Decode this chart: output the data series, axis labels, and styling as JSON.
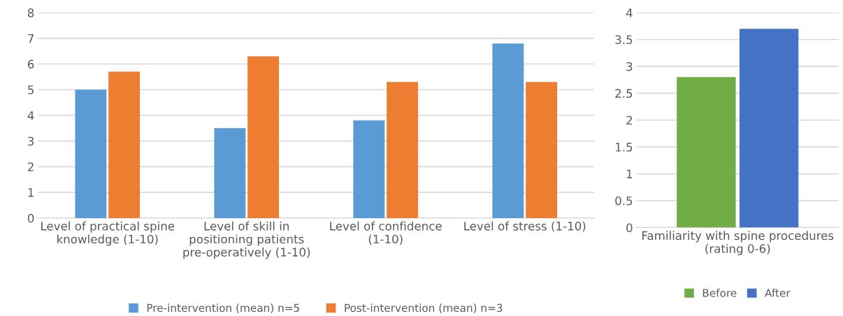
{
  "chart_data": [
    {
      "type": "bar",
      "categories": [
        "Level of practical spine knowledge (1-10)",
        "Level of skill in positioning patients pre-operatively (1-10)",
        "Level of confidence (1-10)",
        "Level of stress (1-10)"
      ],
      "series": [
        {
          "name": "Pre-intervention (mean) n=5",
          "color": "#5b9bd5",
          "values": [
            5.0,
            3.5,
            3.8,
            6.8
          ]
        },
        {
          "name": "Post-intervention (mean) n=3",
          "color": "#ed7d31",
          "values": [
            5.7,
            6.3,
            5.3,
            5.3
          ]
        }
      ],
      "ylim": [
        0,
        8
      ],
      "yticks": [
        0,
        1,
        2,
        3,
        4,
        5,
        6,
        7,
        8
      ],
      "grid": "y",
      "legend": "bottom"
    },
    {
      "type": "bar",
      "categories": [
        "Familiarity with spine procedures (rating 0-6)"
      ],
      "series": [
        {
          "name": "Before",
          "color": "#70ad47",
          "values": [
            2.8
          ]
        },
        {
          "name": "After",
          "color": "#4472c4",
          "values": [
            3.7
          ]
        }
      ],
      "ylim": [
        0,
        4
      ],
      "yticks": [
        0,
        0.5,
        1,
        1.5,
        2,
        2.5,
        3,
        3.5,
        4
      ],
      "grid": "y",
      "legend": "bottom"
    }
  ]
}
